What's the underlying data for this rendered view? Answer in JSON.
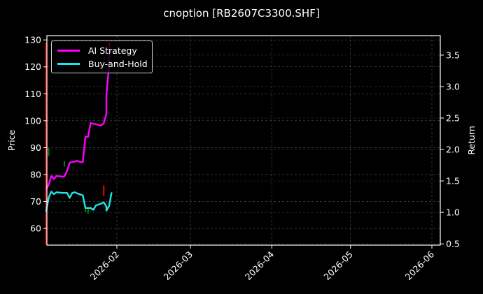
{
  "title": "cnoption [RB2607C3300.SHF]",
  "chart_data": {
    "type": "line",
    "title": "cnoption [RB2607C3300.SHF]",
    "xlabel": "",
    "ylabel": "Price",
    "ylabel_right": "Return",
    "grid": true,
    "legend_position": "upper left",
    "ylim": [
      53.8,
      131.6
    ],
    "ylim_right": [
      0.48,
      3.81
    ],
    "x_tick_labels": [
      "2026-02",
      "2026-03",
      "2026-04",
      "2026-05",
      "2026-06"
    ],
    "y_tick_labels": [
      "60",
      "70",
      "80",
      "90",
      "100",
      "110",
      "120",
      "130"
    ],
    "y_right_tick_labels": [
      "0.5",
      "1.0",
      "1.5",
      "2.0",
      "2.5",
      "3.0",
      "3.5"
    ],
    "series": [
      {
        "name": "AI Strategy",
        "axis": "right",
        "color": "#ff00ff",
        "x": [
          "2026-01-05",
          "2026-01-06",
          "2026-01-07",
          "2026-01-08",
          "2026-01-09",
          "2026-01-11",
          "2026-01-12",
          "2026-01-13",
          "2026-01-14",
          "2026-01-15",
          "2026-01-17",
          "2026-01-18",
          "2026-01-19",
          "2026-01-20",
          "2026-01-21",
          "2026-01-22",
          "2026-01-24",
          "2026-01-26",
          "2026-01-27",
          "2026-01-28",
          "2026-01-28",
          "2026-01-29",
          "2026-01-29"
        ],
        "values": [
          1.36,
          1.44,
          1.58,
          1.53,
          1.58,
          1.57,
          1.57,
          1.66,
          1.79,
          1.8,
          1.82,
          1.8,
          1.8,
          2.2,
          2.2,
          2.42,
          2.4,
          2.38,
          2.42,
          2.57,
          2.87,
          3.32,
          3.71
        ]
      },
      {
        "name": "Buy-and-Hold",
        "axis": "right",
        "color": "#22e5e5",
        "x": [
          "2026-01-05",
          "2026-01-06",
          "2026-01-07",
          "2026-01-08",
          "2026-01-09",
          "2026-01-11",
          "2026-01-13",
          "2026-01-14",
          "2026-01-15",
          "2026-01-16",
          "2026-01-17",
          "2026-01-19",
          "2026-01-20",
          "2026-01-22",
          "2026-01-23",
          "2026-01-24",
          "2026-01-26",
          "2026-01-27",
          "2026-01-28",
          "2026-01-28",
          "2026-01-29",
          "2026-01-30"
        ],
        "values": [
          1.01,
          1.23,
          1.33,
          1.29,
          1.32,
          1.31,
          1.31,
          1.23,
          1.31,
          1.32,
          1.3,
          1.27,
          1.07,
          1.07,
          1.04,
          1.11,
          1.14,
          1.16,
          1.09,
          1.03,
          1.1,
          1.32
        ]
      }
    ],
    "candles": [
      {
        "x": "2026-01-05",
        "color": "#ff0000",
        "low": 54,
        "high": 129
      },
      {
        "x": "2026-01-06",
        "color": "#008000",
        "low": 87,
        "high": 90
      },
      {
        "x": "2026-01-12",
        "color": "#008000",
        "low": 83,
        "high": 85
      },
      {
        "x": "2026-01-20",
        "color": "#008000",
        "low": 66,
        "high": 68
      },
      {
        "x": "2026-01-21",
        "color": "#008000",
        "low": 65.5,
        "high": 67.5
      },
      {
        "x": "2026-01-27",
        "color": "#ff0000",
        "low": 72,
        "high": 76
      }
    ]
  },
  "legend": {
    "items": [
      {
        "label": "AI Strategy",
        "color": "#ff00ff"
      },
      {
        "label": "Buy-and-Hold",
        "color": "#22e5e5"
      }
    ]
  },
  "axes": {
    "left_label": "Price",
    "right_label": "Return"
  }
}
